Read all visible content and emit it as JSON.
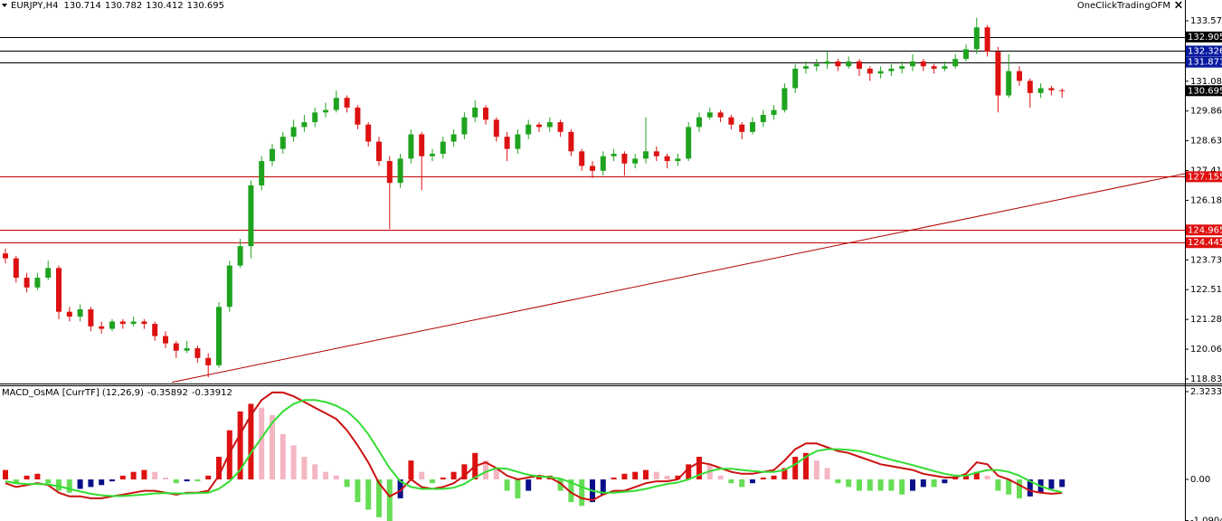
{
  "chart_data": [
    {
      "type": "candlestick",
      "title": "EURJPY,H4",
      "brand": "OneClickTradingOFM",
      "close_icon": "×",
      "up_color": "#1fa31f",
      "down_color": "#dd1111",
      "ylim": [
        118.686,
        134.426
      ],
      "yticks": [
        {
          "value": 133.57,
          "label": "133.570"
        },
        131.085,
        {
          "value": 129.86,
          "label": "129.860"
        },
        128.635,
        {
          "value": 127.41,
          "label": "127.410"
        },
        126.185,
        123.735,
        {
          "value": 122.51,
          "label": "122.510"
        },
        121.285,
        {
          "value": 120.06,
          "label": "120.060"
        },
        118.835
      ],
      "levels": [
        {
          "value": 132.905,
          "line_color": "#000000",
          "label_color": "#000000"
        },
        {
          "value": 132.326,
          "line_color": "#000000",
          "label_color": "#0a1aa0"
        },
        {
          "value": 131.871,
          "line_color": "#000000",
          "label_color": "#0a1aa0"
        },
        {
          "value": 127.155,
          "line_color": "#c00000",
          "label_color": "#e01010"
        },
        {
          "value": 124.965,
          "line_color": "#c00000",
          "label_color": "#e01010"
        },
        {
          "value": 124.445,
          "line_color": "#c00000",
          "label_color": "#e01010"
        }
      ],
      "last_price": {
        "value": 130.695,
        "label_color": "#000000"
      },
      "trendline": {
        "x": [
          15.6,
          110.5
        ],
        "y": [
          118.7,
          127.28
        ],
        "color": "#b00000"
      },
      "ohlc": [
        [
          124.0,
          124.2,
          123.6,
          123.8
        ],
        [
          123.8,
          123.9,
          122.8,
          123.0
        ],
        [
          123.0,
          123.2,
          122.4,
          122.6
        ],
        [
          122.6,
          123.2,
          122.5,
          123.0
        ],
        [
          123.0,
          123.7,
          122.9,
          123.4
        ],
        [
          123.4,
          123.5,
          121.3,
          121.6
        ],
        [
          121.6,
          121.8,
          121.2,
          121.4
        ],
        [
          121.4,
          121.9,
          121.2,
          121.7
        ],
        [
          121.7,
          121.8,
          120.8,
          121.0
        ],
        [
          121.0,
          121.2,
          120.7,
          120.9
        ],
        [
          120.9,
          121.3,
          120.8,
          121.2
        ],
        [
          121.2,
          121.3,
          120.9,
          121.1
        ],
        [
          121.1,
          121.4,
          121.0,
          121.2
        ],
        [
          121.2,
          121.3,
          120.9,
          121.1
        ],
        [
          121.1,
          121.2,
          120.4,
          120.6
        ],
        [
          120.6,
          120.8,
          120.1,
          120.3
        ],
        [
          120.3,
          120.4,
          119.7,
          120.0
        ],
        [
          120.0,
          120.4,
          119.9,
          120.1
        ],
        [
          120.1,
          120.2,
          119.5,
          119.7
        ],
        [
          119.7,
          119.9,
          118.9,
          119.4
        ],
        [
          119.4,
          122.0,
          119.3,
          121.8
        ],
        [
          121.8,
          123.7,
          121.6,
          123.5
        ],
        [
          123.5,
          124.6,
          123.4,
          124.3
        ],
        [
          124.3,
          127.0,
          123.8,
          126.8
        ],
        [
          126.8,
          128.0,
          126.6,
          127.8
        ],
        [
          127.8,
          128.5,
          127.6,
          128.3
        ],
        [
          128.3,
          129.0,
          128.1,
          128.8
        ],
        [
          128.8,
          129.5,
          128.6,
          129.2
        ],
        [
          129.2,
          129.7,
          129.0,
          129.4
        ],
        [
          129.4,
          130.0,
          129.2,
          129.8
        ],
        [
          129.8,
          130.2,
          129.6,
          129.9
        ],
        [
          129.9,
          130.7,
          129.8,
          130.4
        ],
        [
          130.4,
          130.5,
          129.8,
          130.0
        ],
        [
          130.0,
          130.1,
          129.1,
          129.3
        ],
        [
          129.3,
          129.4,
          128.4,
          128.6
        ],
        [
          128.6,
          128.8,
          127.6,
          127.8
        ],
        [
          127.8,
          128.0,
          125.0,
          126.9
        ],
        [
          126.9,
          128.1,
          126.7,
          127.9
        ],
        [
          127.9,
          129.1,
          127.7,
          128.9
        ],
        [
          128.9,
          129.0,
          126.6,
          128.0
        ],
        [
          128.0,
          128.3,
          127.8,
          128.1
        ],
        [
          128.1,
          128.8,
          127.9,
          128.6
        ],
        [
          128.6,
          129.1,
          128.4,
          128.9
        ],
        [
          128.9,
          129.8,
          128.7,
          129.6
        ],
        [
          129.6,
          130.3,
          129.4,
          130.0
        ],
        [
          130.0,
          130.1,
          129.3,
          129.5
        ],
        [
          129.5,
          129.6,
          128.6,
          128.8
        ],
        [
          128.8,
          129.0,
          127.8,
          128.3
        ],
        [
          128.3,
          129.1,
          128.1,
          128.9
        ],
        [
          128.9,
          129.5,
          128.7,
          129.3
        ],
        [
          129.3,
          129.4,
          129.0,
          129.2
        ],
        [
          129.2,
          129.6,
          129.0,
          129.4
        ],
        [
          129.4,
          129.5,
          128.8,
          129.0
        ],
        [
          129.0,
          129.1,
          128.0,
          128.2
        ],
        [
          128.2,
          128.3,
          127.4,
          127.6
        ],
        [
          127.6,
          127.8,
          127.1,
          127.4
        ],
        [
          127.4,
          128.2,
          127.2,
          128.0
        ],
        [
          128.0,
          128.3,
          127.8,
          128.1
        ],
        [
          128.1,
          128.2,
          127.2,
          127.7
        ],
        [
          127.7,
          128.1,
          127.5,
          127.9
        ],
        [
          127.9,
          129.6,
          127.7,
          128.2
        ],
        [
          128.2,
          128.4,
          127.8,
          128.0
        ],
        [
          128.0,
          128.1,
          127.5,
          127.8
        ],
        [
          127.8,
          128.1,
          127.6,
          127.9
        ],
        [
          127.9,
          129.4,
          127.8,
          129.2
        ],
        [
          129.2,
          129.8,
          129.0,
          129.6
        ],
        [
          129.6,
          130.0,
          129.5,
          129.8
        ],
        [
          129.8,
          129.9,
          129.4,
          129.6
        ],
        [
          129.6,
          129.7,
          129.1,
          129.3
        ],
        [
          129.3,
          129.4,
          128.7,
          129.0
        ],
        [
          129.0,
          129.6,
          128.9,
          129.4
        ],
        [
          129.4,
          129.9,
          129.2,
          129.7
        ],
        [
          129.7,
          130.1,
          129.5,
          129.9
        ],
        [
          129.9,
          131.0,
          129.8,
          130.8
        ],
        [
          130.8,
          131.8,
          130.6,
          131.6
        ],
        [
          131.6,
          131.9,
          131.4,
          131.7
        ],
        [
          131.7,
          132.0,
          131.5,
          131.8
        ],
        [
          131.8,
          132.3,
          131.6,
          131.9
        ],
        [
          131.9,
          132.0,
          131.5,
          131.7
        ],
        [
          131.7,
          132.1,
          131.6,
          131.9
        ],
        [
          131.9,
          132.0,
          131.3,
          131.6
        ],
        [
          131.6,
          131.7,
          131.1,
          131.4
        ],
        [
          131.4,
          131.7,
          131.2,
          131.5
        ],
        [
          131.5,
          131.8,
          131.3,
          131.6
        ],
        [
          131.6,
          131.9,
          131.4,
          131.7
        ],
        [
          131.7,
          132.2,
          131.5,
          131.9
        ],
        [
          131.9,
          132.0,
          131.5,
          131.7
        ],
        [
          131.7,
          131.8,
          131.4,
          131.6
        ],
        [
          131.6,
          131.9,
          131.5,
          131.7
        ],
        [
          131.7,
          132.2,
          131.6,
          132.0
        ],
        [
          132.0,
          132.6,
          131.9,
          132.4
        ],
        [
          132.4,
          133.7,
          132.2,
          133.3
        ],
        [
          133.3,
          133.4,
          132.1,
          132.3
        ],
        [
          132.3,
          132.5,
          129.8,
          130.5
        ],
        [
          130.5,
          132.2,
          130.4,
          131.5
        ],
        [
          131.5,
          131.7,
          130.9,
          131.1
        ],
        [
          131.1,
          131.2,
          130.0,
          130.6
        ],
        [
          130.6,
          131.0,
          130.4,
          130.8
        ],
        [
          130.8,
          130.9,
          130.5,
          130.714
        ],
        [
          130.714,
          130.782,
          130.412,
          130.695
        ]
      ]
    },
    {
      "type": "macd",
      "title": "MACD_OsMA [CurrTF] (12,26,9)",
      "ylim": [
        -1.1,
        2.49
      ],
      "yticks": [
        2.32339,
        {
          "value": 0,
          "label": "0.00"
        },
        -1.09042
      ],
      "colors": {
        "macd": "#cc1111",
        "signal": "#33dd33",
        "pos_up": "#dd1111",
        "pos_down": "#f4b6c2",
        "neg_down": "#66dd55",
        "neg_up": "#0a108a"
      },
      "macd": [
        -0.1,
        -0.2,
        -0.15,
        -0.1,
        -0.15,
        -0.35,
        -0.45,
        -0.45,
        -0.5,
        -0.5,
        -0.45,
        -0.4,
        -0.35,
        -0.3,
        -0.3,
        -0.35,
        -0.4,
        -0.35,
        -0.35,
        -0.3,
        0.1,
        0.7,
        1.2,
        1.7,
        2.1,
        2.3,
        2.3,
        2.2,
        2.05,
        1.9,
        1.75,
        1.6,
        1.3,
        0.9,
        0.45,
        -0.1,
        -0.45,
        -0.3,
        0.0,
        -0.2,
        -0.25,
        -0.2,
        -0.1,
        0.1,
        0.35,
        0.45,
        0.3,
        0.1,
        0.0,
        0.05,
        0.1,
        0.05,
        -0.1,
        -0.35,
        -0.5,
        -0.55,
        -0.4,
        -0.3,
        -0.3,
        -0.2,
        -0.1,
        -0.05,
        -0.05,
        0.0,
        0.3,
        0.45,
        0.4,
        0.3,
        0.2,
        0.15,
        0.15,
        0.2,
        0.25,
        0.5,
        0.8,
        0.95,
        0.95,
        0.85,
        0.75,
        0.7,
        0.6,
        0.5,
        0.4,
        0.35,
        0.3,
        0.25,
        0.15,
        0.1,
        0.05,
        0.05,
        0.15,
        0.45,
        0.4,
        0.1,
        0.0,
        -0.15,
        -0.3,
        -0.35,
        -0.38,
        -0.35892
      ],
      "signal": [
        -0.05,
        -0.1,
        -0.12,
        -0.12,
        -0.13,
        -0.18,
        -0.25,
        -0.32,
        -0.38,
        -0.42,
        -0.44,
        -0.44,
        -0.42,
        -0.4,
        -0.37,
        -0.36,
        -0.37,
        -0.37,
        -0.36,
        -0.35,
        -0.25,
        -0.05,
        0.25,
        0.7,
        1.1,
        1.5,
        1.8,
        2.0,
        2.1,
        2.1,
        2.05,
        1.95,
        1.8,
        1.55,
        1.2,
        0.75,
        0.3,
        -0.05,
        -0.2,
        -0.25,
        -0.25,
        -0.25,
        -0.22,
        -0.12,
        0.05,
        0.2,
        0.3,
        0.28,
        0.2,
        0.12,
        0.08,
        0.06,
        0.02,
        -0.08,
        -0.2,
        -0.3,
        -0.35,
        -0.35,
        -0.33,
        -0.3,
        -0.25,
        -0.18,
        -0.12,
        -0.08,
        0.0,
        0.12,
        0.22,
        0.28,
        0.28,
        0.25,
        0.22,
        0.2,
        0.2,
        0.25,
        0.4,
        0.6,
        0.75,
        0.8,
        0.8,
        0.78,
        0.75,
        0.68,
        0.6,
        0.52,
        0.45,
        0.38,
        0.3,
        0.22,
        0.15,
        0.1,
        0.1,
        0.18,
        0.25,
        0.25,
        0.2,
        0.1,
        -0.05,
        -0.18,
        -0.28,
        -0.33912
      ],
      "histogram": [
        0.25,
        -0.1,
        0.1,
        0.15,
        -0.1,
        -0.3,
        -0.35,
        -0.25,
        -0.2,
        -0.15,
        -0.05,
        0.1,
        0.2,
        0.25,
        0.2,
        0.05,
        -0.1,
        -0.05,
        -0.05,
        0.1,
        0.6,
        1.3,
        1.8,
        2.0,
        1.9,
        1.7,
        1.2,
        0.9,
        0.6,
        0.4,
        0.2,
        0.1,
        -0.2,
        -0.6,
        -0.8,
        -1.0,
        -1.1,
        -0.5,
        0.5,
        0.2,
        -0.1,
        0.05,
        0.2,
        0.4,
        0.7,
        0.5,
        0.3,
        -0.3,
        -0.5,
        -0.3,
        0.1,
        0.1,
        -0.3,
        -0.6,
        -0.7,
        -0.6,
        -0.4,
        0.05,
        0.15,
        0.2,
        0.25,
        0.2,
        0.1,
        0.1,
        0.4,
        0.6,
        0.4,
        0.1,
        -0.1,
        -0.2,
        -0.1,
        0.05,
        0.1,
        0.3,
        0.6,
        0.7,
        0.5,
        0.3,
        -0.1,
        -0.2,
        -0.3,
        -0.3,
        -0.3,
        -0.3,
        -0.4,
        -0.3,
        -0.2,
        -0.2,
        -0.1,
        0.05,
        0.1,
        0.2,
        0.1,
        -0.3,
        -0.4,
        -0.5,
        -0.45,
        -0.35,
        -0.25,
        -0.2
      ]
    }
  ]
}
